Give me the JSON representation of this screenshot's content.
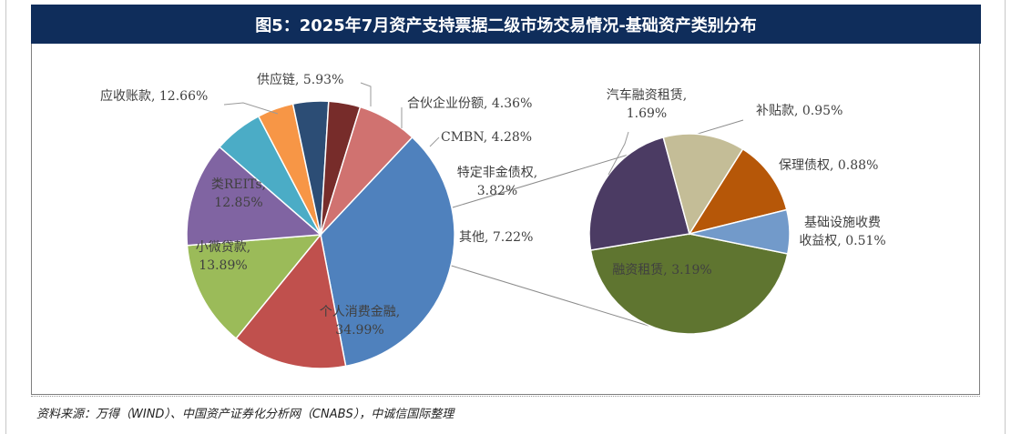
{
  "figure": {
    "title": "图5：2025年7月资产支持票据二级市场交易情况-基础资产类别分布",
    "source": "资料来源：万得（WIND）、中国资产证券化分析网（CNABS），中诚信国际整理"
  },
  "chart_data": [
    {
      "type": "pie",
      "title": "",
      "slices": [
        {
          "label": "个人消费金融",
          "value": 34.99,
          "display": "个人消费金融,\n34.99%",
          "color": "#4f81bd"
        },
        {
          "label": "小微贷款",
          "value": 13.89,
          "display": "小微贷款,\n13.89%",
          "color": "#c0504d"
        },
        {
          "label": "类REITs",
          "value": 12.85,
          "display": "类REITs,\n12.85%",
          "color": "#9bbb59"
        },
        {
          "label": "应收账款",
          "value": 12.66,
          "display": "应收账款, 12.66%",
          "color": "#8064a2"
        },
        {
          "label": "供应链",
          "value": 5.93,
          "display": "供应链, 5.93%",
          "color": "#4bacc6"
        },
        {
          "label": "合伙企业份额",
          "value": 4.36,
          "display": "合伙企业份额, 4.36%",
          "color": "#f79646"
        },
        {
          "label": "CMBN",
          "value": 4.28,
          "display": "CMBN, 4.28%",
          "color": "#2c4d75"
        },
        {
          "label": "特定非金债权",
          "value": 3.82,
          "display": "特定非金债权,\n3.82%",
          "color": "#772c2a"
        },
        {
          "label": "其他",
          "value": 7.22,
          "display": "其他, 7.22%",
          "color": "#d07270"
        }
      ]
    },
    {
      "type": "pie",
      "title": "",
      "slices": [
        {
          "label": "融资租赁",
          "value": 3.19,
          "display": "融资租赁, 3.19%",
          "color": "#5f7530"
        },
        {
          "label": "汽车融资租赁",
          "value": 1.69,
          "display": "汽车融资租赁,\n1.69%",
          "color": "#4b3b63"
        },
        {
          "label": "补贴款",
          "value": 0.95,
          "display": "补贴款, 0.95%",
          "color": "#c4bd97"
        },
        {
          "label": "保理债权",
          "value": 0.88,
          "display": "保理债权, 0.88%",
          "color": "#b65708"
        },
        {
          "label": "基础设施收费收益权",
          "value": 0.51,
          "display": "基础设施收费\n收益权, 0.51%",
          "color": "#729aca"
        }
      ]
    }
  ]
}
